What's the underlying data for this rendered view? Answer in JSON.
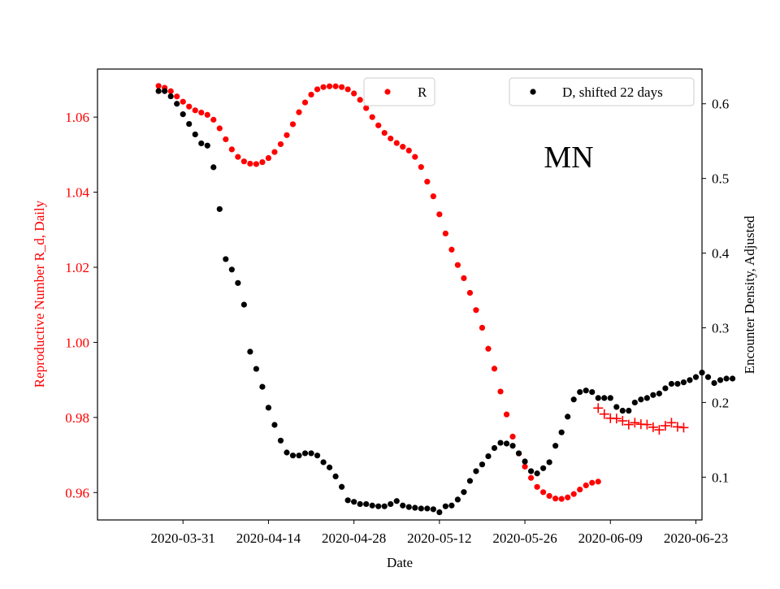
{
  "chart_data": {
    "type": "scatter",
    "state_label": "MN",
    "xlabel": "Date",
    "ylabel_left": "Reproductive Number R_d, Daily",
    "ylabel_right": "Encounter Density, Adjusted",
    "x_ticks": [
      "2020-03-31",
      "2020-04-14",
      "2020-04-28",
      "2020-05-12",
      "2020-05-26",
      "2020-06-09",
      "2020-06-23"
    ],
    "x_range": [
      "2020-03-17",
      "2020-06-24"
    ],
    "y_left_ticks": [
      "0.96",
      "0.98",
      "1.00",
      "1.02",
      "1.04",
      "1.06"
    ],
    "y_left_ticks_values": [
      0.96,
      0.98,
      1.0,
      1.02,
      1.04,
      1.06
    ],
    "y_left_range": [
      0.9527,
      1.0728
    ],
    "y_right_ticks": [
      "0.1",
      "0.2",
      "0.3",
      "0.4",
      "0.5",
      "0.6"
    ],
    "y_right_ticks_values": [
      0.1,
      0.2,
      0.3,
      0.4,
      0.5,
      0.6
    ],
    "y_right_range": [
      0.0427,
      0.6465
    ],
    "colors": {
      "R": "#ff0000",
      "D": "#000000",
      "axis": "#000000"
    },
    "grid": false,
    "legends": [
      {
        "label": "R",
        "color": "#ff0000",
        "placement": "top-center"
      },
      {
        "label": "D, shifted 22 days",
        "color": "#000000",
        "placement": "top-right"
      }
    ],
    "series": [
      {
        "name": "R",
        "axis": "left",
        "marker": "dot",
        "color": "#ff0000",
        "x_start": "2020-03-27",
        "values": [
          1.0683,
          1.0678,
          1.0669,
          1.0655,
          1.0641,
          1.0628,
          1.0618,
          1.0612,
          1.0606,
          1.0593,
          1.057,
          1.0541,
          1.0514,
          1.0494,
          1.0482,
          1.0476,
          1.0475,
          1.048,
          1.0491,
          1.0507,
          1.0528,
          1.0552,
          1.0581,
          1.0613,
          1.0639,
          1.066,
          1.0674,
          1.068,
          1.0682,
          1.0682,
          1.068,
          1.0674,
          1.0663,
          1.0646,
          1.0624,
          1.06,
          1.0578,
          1.0558,
          1.0543,
          1.0531,
          1.0521,
          1.0511,
          1.0494,
          1.0467,
          1.0428,
          1.0389,
          1.0341,
          1.029,
          1.0247,
          1.0206,
          1.0171,
          1.0132,
          1.0086,
          1.0039,
          0.9983,
          0.993,
          0.9869,
          0.9808,
          0.9749,
          0.9704,
          0.9669,
          0.9639,
          0.9615,
          0.9601,
          0.9591,
          0.9584,
          0.9583,
          0.9587,
          0.9596,
          0.9608,
          0.9619,
          0.9626,
          0.9629
        ]
      },
      {
        "name": "R",
        "axis": "left",
        "marker": "plus",
        "color": "#ff0000",
        "x_start": "2020-06-07",
        "values": [
          0.9825,
          0.9809,
          0.9798,
          0.9797,
          0.9791,
          0.9781,
          0.9786,
          0.9782,
          0.9781,
          0.9774,
          0.9767,
          0.9778,
          0.9786,
          0.9775,
          0.9773
        ]
      },
      {
        "name": "D, shifted 22 days",
        "axis": "right",
        "marker": "dot",
        "color": "#000000",
        "x_start": "2020-03-27",
        "values": [
          0.617,
          0.617,
          0.61,
          0.6,
          0.586,
          0.573,
          0.559,
          0.547,
          0.544,
          0.515,
          0.459,
          0.392,
          0.378,
          0.36,
          0.331,
          0.268,
          0.245,
          0.221,
          0.193,
          0.17,
          0.149,
          0.133,
          0.129,
          0.129,
          0.132,
          0.132,
          0.129,
          0.12,
          0.113,
          0.101,
          0.087,
          0.069,
          0.067,
          0.064,
          0.064,
          0.062,
          0.061,
          0.061,
          0.064,
          0.068,
          0.062,
          0.06,
          0.059,
          0.058,
          0.058,
          0.057,
          0.053,
          0.061,
          0.062,
          0.07,
          0.08,
          0.095,
          0.108,
          0.117,
          0.128,
          0.139,
          0.146,
          0.145,
          0.142,
          0.132,
          0.121,
          0.108,
          0.105,
          0.112,
          0.12,
          0.142,
          0.16,
          0.181,
          0.204,
          0.214,
          0.216,
          0.214,
          0.206,
          0.206,
          0.206,
          0.194,
          0.189,
          0.189,
          0.2,
          0.204,
          0.206,
          0.21,
          0.212,
          0.219,
          0.225,
          0.225,
          0.227,
          0.23,
          0.234,
          0.24,
          0.234,
          0.226,
          0.23,
          0.232,
          0.232
        ]
      }
    ]
  }
}
